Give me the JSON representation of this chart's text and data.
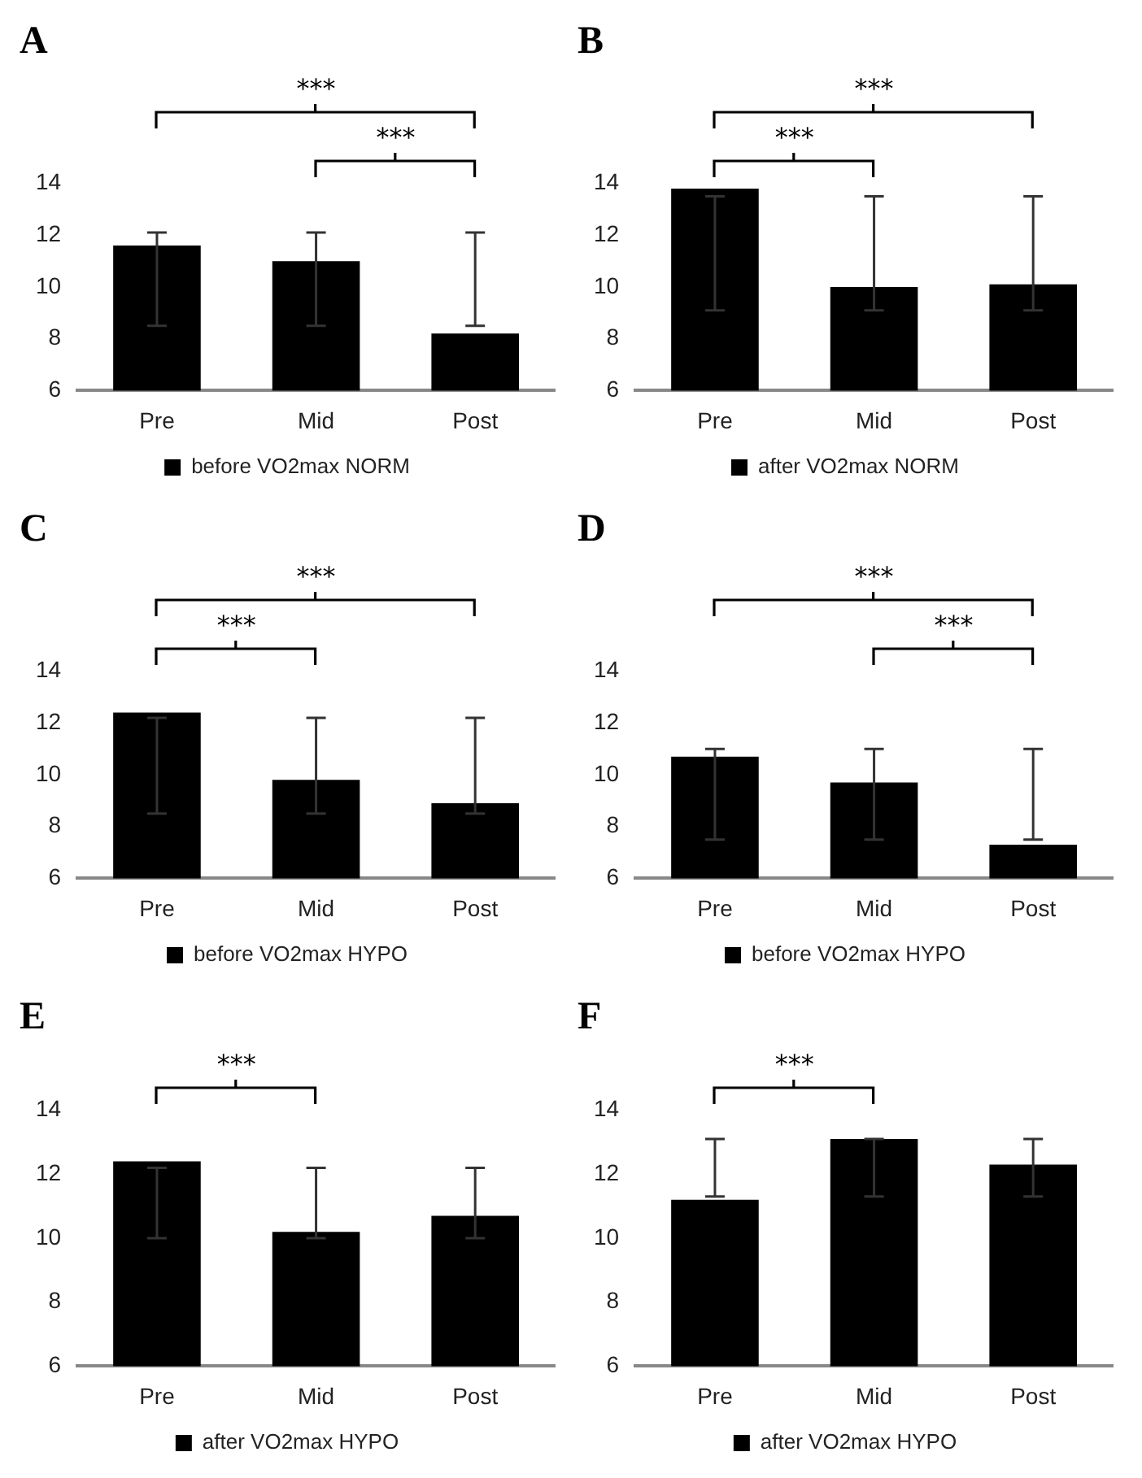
{
  "chart_data": [
    {
      "type": "bar",
      "title": "A",
      "categories": [
        "Pre",
        "Mid",
        "Post"
      ],
      "legend": "bottom",
      "ylim": [
        6,
        14
      ],
      "yticks": [
        6,
        8,
        10,
        12,
        14
      ],
      "annotations": [
        "***",
        "***"
      ],
      "series": [
        {
          "name": "before VO2max NORM",
          "color": "#000000",
          "values": [
            11.6,
            11.0,
            8.2
          ],
          "errors": [
            [
              8.5,
              12.1
            ],
            [
              8.5,
              12.1
            ],
            [
              8.5,
              12.1
            ]
          ]
        }
      ]
    },
    {
      "type": "bar",
      "title": "B",
      "categories": [
        "Pre",
        "Mid",
        "Post"
      ],
      "legend": "bottom",
      "ylim": [
        6,
        14
      ],
      "yticks": [
        6,
        8,
        10,
        12,
        14
      ],
      "annotations": [
        "***",
        "***"
      ],
      "series": [
        {
          "name": "after VO2max NORM",
          "color": "#000000",
          "values": [
            13.8,
            10.0,
            10.1
          ],
          "errors": [
            [
              9.1,
              13.5
            ],
            [
              9.1,
              13.5
            ],
            [
              9.1,
              13.5
            ]
          ]
        }
      ]
    },
    {
      "type": "bar",
      "title": "C",
      "categories": [
        "Pre",
        "Mid",
        "Post"
      ],
      "legend": "bottom",
      "ylim": [
        6,
        14
      ],
      "yticks": [
        6,
        8,
        10,
        12,
        14
      ],
      "annotations": [
        "***",
        "***"
      ],
      "series": [
        {
          "name": "before VO2max HYPO",
          "color": "#000000",
          "values": [
            12.4,
            9.8,
            8.9
          ],
          "errors": [
            [
              8.5,
              12.2
            ],
            [
              8.5,
              12.2
            ],
            [
              8.5,
              12.2
            ]
          ]
        }
      ]
    },
    {
      "type": "bar",
      "title": "D",
      "categories": [
        "Pre",
        "Mid",
        "Post"
      ],
      "legend": "bottom",
      "ylim": [
        6,
        14
      ],
      "yticks": [
        6,
        8,
        10,
        12,
        14
      ],
      "annotations": [
        "***",
        "***"
      ],
      "series": [
        {
          "name": "before VO2max HYPO",
          "color": "#000000",
          "values": [
            10.7,
            9.7,
            7.3
          ],
          "errors": [
            [
              7.5,
              11.0
            ],
            [
              7.5,
              11.0
            ],
            [
              7.5,
              11.0
            ]
          ]
        }
      ]
    },
    {
      "type": "bar",
      "title": "E",
      "categories": [
        "Pre",
        "Mid",
        "Post"
      ],
      "legend": "bottom",
      "ylim": [
        6,
        14
      ],
      "yticks": [
        6,
        8,
        10,
        12,
        14
      ],
      "annotations": [
        "***"
      ],
      "series": [
        {
          "name": "after VO2max HYPO",
          "color": "#000000",
          "values": [
            12.4,
            10.2,
            10.7
          ],
          "errors": [
            [
              10.0,
              12.2
            ],
            [
              10.0,
              12.2
            ],
            [
              10.0,
              12.2
            ]
          ]
        }
      ]
    },
    {
      "type": "bar",
      "title": "F",
      "categories": [
        "Pre",
        "Mid",
        "Post"
      ],
      "legend": "bottom",
      "ylim": [
        6,
        14
      ],
      "yticks": [
        6,
        8,
        10,
        12,
        14
      ],
      "annotations": [
        "***"
      ],
      "series": [
        {
          "name": "after VO2max HYPO",
          "color": "#000000",
          "values": [
            11.2,
            13.1,
            12.3
          ],
          "errors": [
            [
              11.3,
              13.1
            ],
            [
              11.3,
              13.1
            ],
            [
              11.3,
              13.1
            ]
          ]
        }
      ]
    }
  ]
}
